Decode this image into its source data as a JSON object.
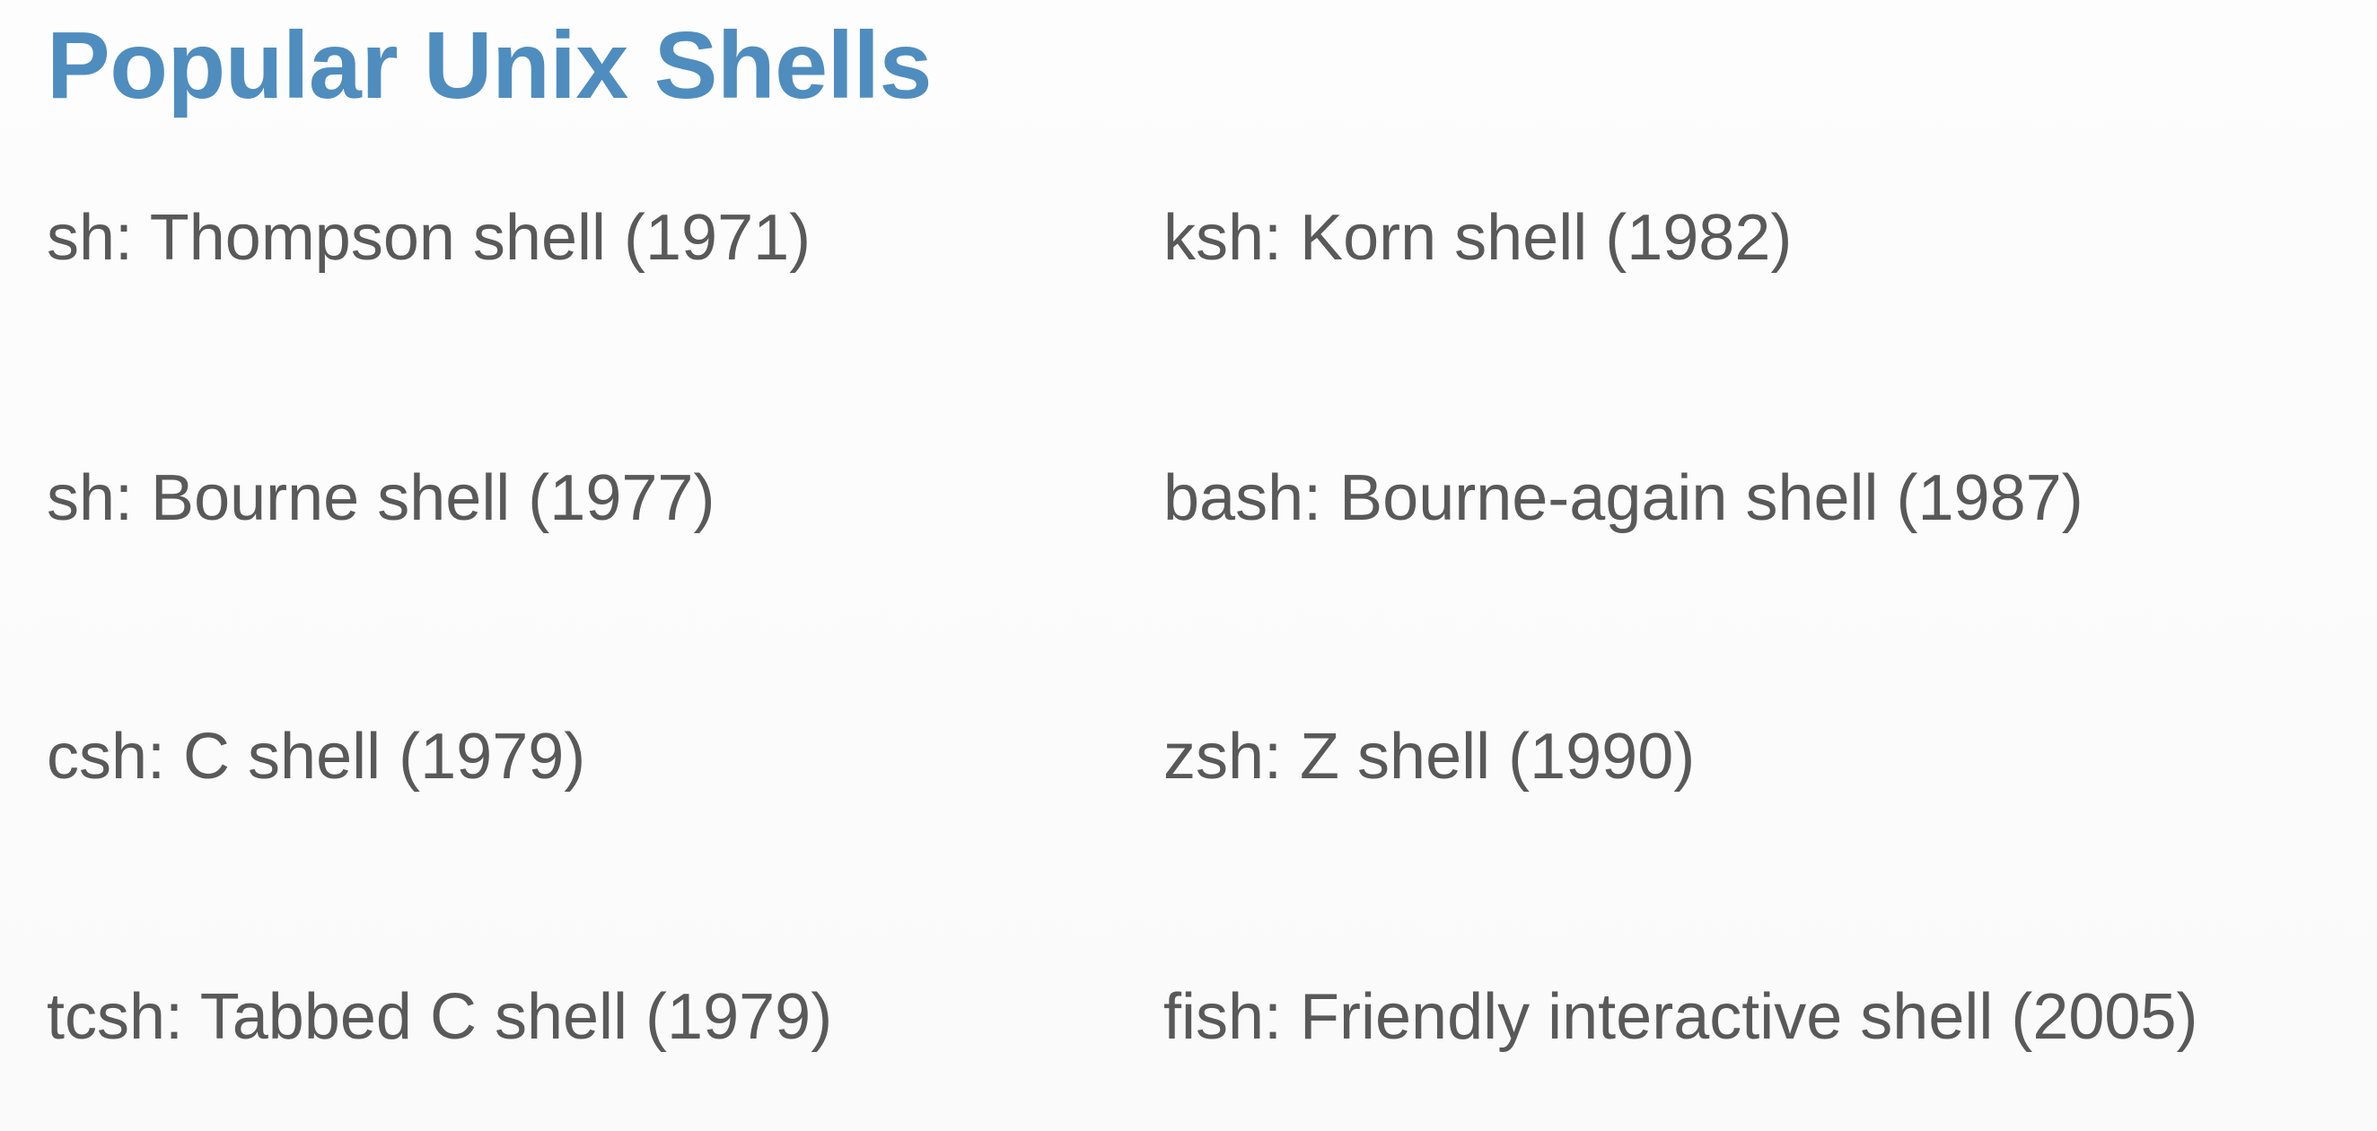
{
  "title": "Popular Unix Shells",
  "shells": [
    {
      "text": "sh: Thompson shell (1971)"
    },
    {
      "text": "ksh: Korn shell (1982)"
    },
    {
      "text": "sh: Bourne shell (1977)"
    },
    {
      "text": "bash: Bourne-again shell (1987)"
    },
    {
      "text": "csh: C shell (1979)"
    },
    {
      "text": "zsh: Z shell (1990)"
    },
    {
      "text": "tcsh: Tabbed C shell (1979)"
    },
    {
      "text": "fish: Friendly interactive shell (2005)"
    }
  ],
  "colors": {
    "title": "#4f8dbf",
    "body_text": "#595959",
    "background": "#fcfcfc"
  }
}
